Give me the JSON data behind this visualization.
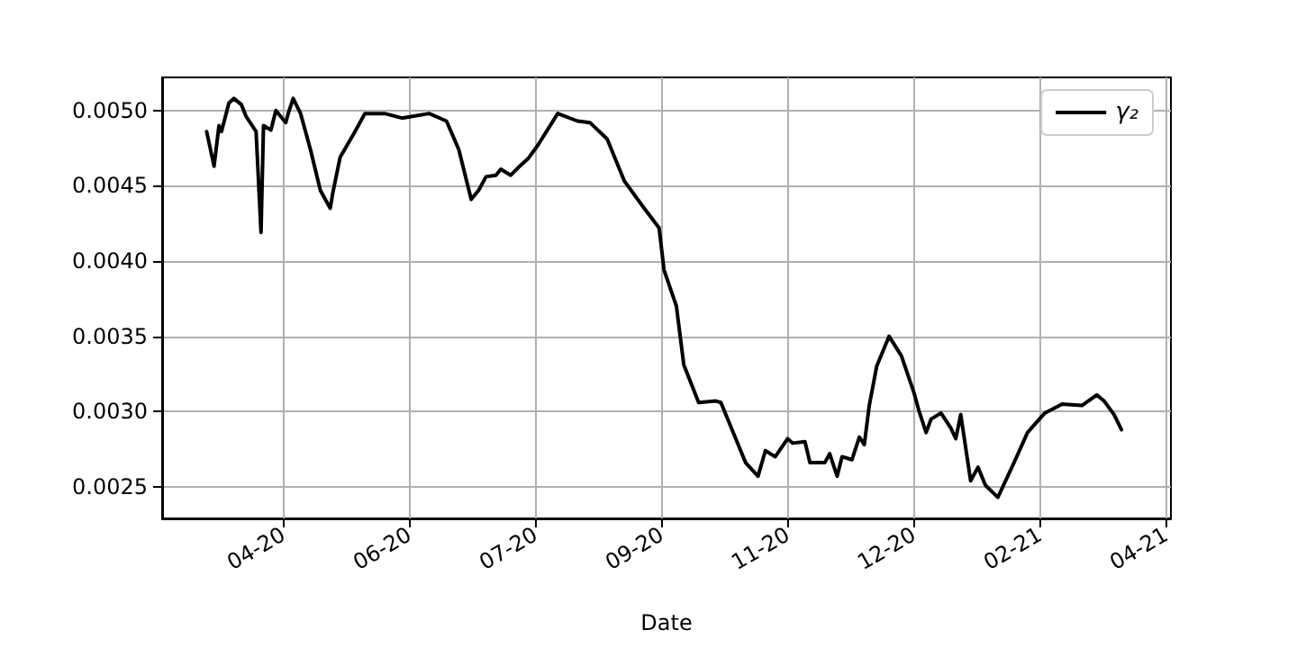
{
  "chart_data": {
    "type": "line",
    "xlabel": "Date",
    "legend": "top right",
    "grid": true,
    "line_style": "solid",
    "marker": "none",
    "xlim": [
      "2020-03-02",
      "2021-04-14"
    ],
    "xticks": [
      {
        "value": "2020-04-20",
        "label": "04-20"
      },
      {
        "value": "2020-06-10",
        "label": "06-20"
      },
      {
        "value": "2020-07-31",
        "label": "07-20"
      },
      {
        "value": "2020-09-20",
        "label": "09-20"
      },
      {
        "value": "2020-11-10",
        "label": "11-20"
      },
      {
        "value": "2020-12-31",
        "label": "12-20"
      },
      {
        "value": "2021-02-20",
        "label": "02-21"
      },
      {
        "value": "2021-04-12",
        "label": "04-21"
      }
    ],
    "ylim": [
      0.00229,
      0.00522
    ],
    "yticks": [
      {
        "value": 0.0025,
        "label": "0.0025"
      },
      {
        "value": 0.003,
        "label": "0.0030"
      },
      {
        "value": 0.0035,
        "label": "0.0035"
      },
      {
        "value": 0.004,
        "label": "0.0040"
      },
      {
        "value": 0.0045,
        "label": "0.0045"
      },
      {
        "value": 0.005,
        "label": "0.0050"
      }
    ],
    "x": [
      "2020-03-20",
      "2020-03-23",
      "2020-03-25",
      "2020-03-26",
      "2020-03-29",
      "2020-03-31",
      "2020-04-03",
      "2020-04-05",
      "2020-04-09",
      "2020-04-11",
      "2020-04-12",
      "2020-04-15",
      "2020-04-17",
      "2020-04-21",
      "2020-04-22",
      "2020-04-24",
      "2020-04-27",
      "2020-05-01",
      "2020-05-05",
      "2020-05-09",
      "2020-05-10",
      "2020-05-13",
      "2020-05-19",
      "2020-05-23",
      "2020-05-31",
      "2020-06-07",
      "2020-06-18",
      "2020-06-25",
      "2020-06-30",
      "2020-07-05",
      "2020-07-08",
      "2020-07-11",
      "2020-07-15",
      "2020-07-17",
      "2020-07-21",
      "2020-07-24",
      "2020-07-28",
      "2020-08-01",
      "2020-08-09",
      "2020-08-17",
      "2020-08-22",
      "2020-08-29",
      "2020-09-05",
      "2020-09-13",
      "2020-09-19",
      "2020-09-21",
      "2020-09-26",
      "2020-09-29",
      "2020-10-05",
      "2020-10-12",
      "2020-10-14",
      "2020-10-19",
      "2020-10-24",
      "2020-10-29",
      "2020-11-01",
      "2020-11-05",
      "2020-11-10",
      "2020-11-12",
      "2020-11-17",
      "2020-11-19",
      "2020-11-25",
      "2020-11-27",
      "2020-11-30",
      "2020-12-02",
      "2020-12-06",
      "2020-12-09",
      "2020-12-11",
      "2020-12-13",
      "2020-12-16",
      "2020-12-21",
      "2020-12-26",
      "2020-12-31",
      "2021-01-02",
      "2021-01-05",
      "2021-01-07",
      "2021-01-11",
      "2021-01-15",
      "2021-01-17",
      "2021-01-19",
      "2021-01-23",
      "2021-01-26",
      "2021-01-29",
      "2021-02-03",
      "2021-02-09",
      "2021-02-15",
      "2021-02-22",
      "2021-03-01",
      "2021-03-09",
      "2021-03-15",
      "2021-03-18",
      "2021-03-22",
      "2021-03-25"
    ],
    "series": [
      {
        "name": "γ₂",
        "color": "#000000",
        "values": [
          0.00486,
          0.00463,
          0.0049,
          0.00486,
          0.00505,
          0.00508,
          0.00504,
          0.00496,
          0.00486,
          0.00419,
          0.0049,
          0.00487,
          0.005,
          0.00492,
          0.00498,
          0.00508,
          0.00498,
          0.00474,
          0.00447,
          0.00435,
          0.00445,
          0.00469,
          0.00486,
          0.00498,
          0.00498,
          0.00495,
          0.00498,
          0.00493,
          0.00474,
          0.00441,
          0.00447,
          0.00456,
          0.00457,
          0.00461,
          0.00457,
          0.00462,
          0.00468,
          0.00477,
          0.00498,
          0.00493,
          0.00492,
          0.00481,
          0.00453,
          0.00435,
          0.00422,
          0.00394,
          0.0037,
          0.00331,
          0.00306,
          0.00307,
          0.00306,
          0.00286,
          0.00266,
          0.00257,
          0.00274,
          0.0027,
          0.00282,
          0.00279,
          0.0028,
          0.00266,
          0.00266,
          0.00272,
          0.00257,
          0.0027,
          0.00268,
          0.00283,
          0.00278,
          0.00304,
          0.0033,
          0.0035,
          0.00337,
          0.00313,
          0.00301,
          0.00286,
          0.00295,
          0.00299,
          0.00289,
          0.00282,
          0.00298,
          0.00254,
          0.00263,
          0.00251,
          0.00243,
          0.00264,
          0.00286,
          0.00299,
          0.00305,
          0.00304,
          0.00311,
          0.00307,
          0.00298,
          0.00288
        ]
      }
    ]
  }
}
